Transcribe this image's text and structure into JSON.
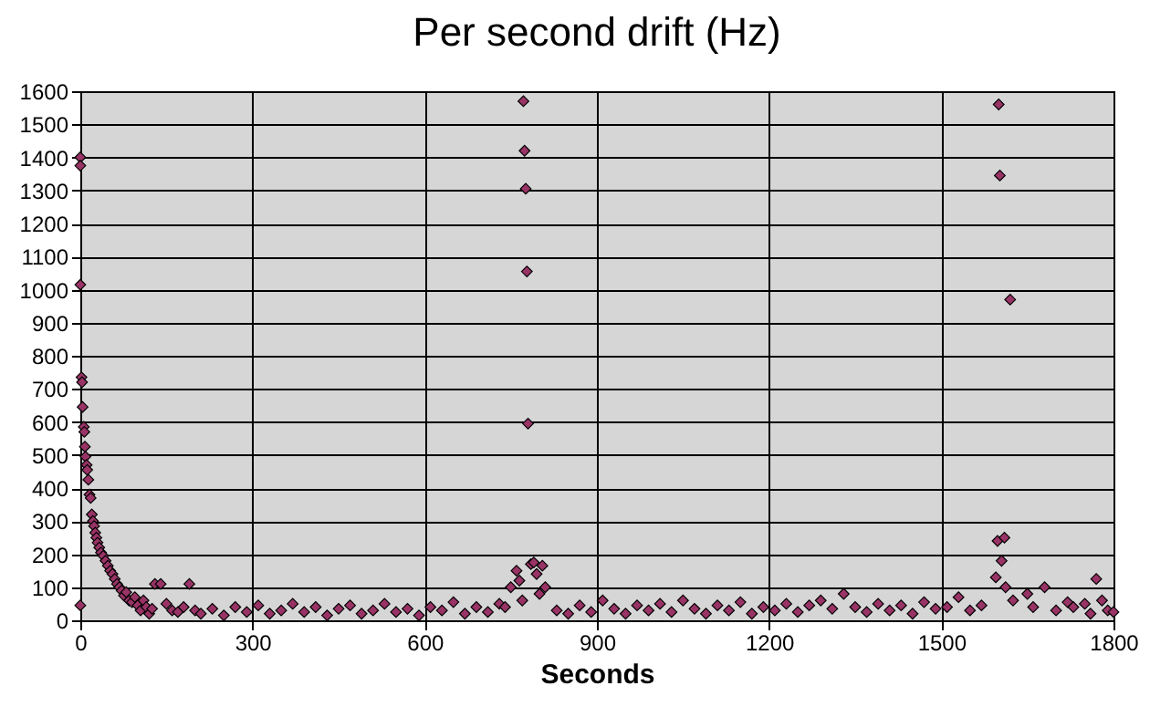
{
  "chart_data": {
    "type": "scatter",
    "title": "Per second drift (Hz)",
    "xlabel": "Seconds",
    "xlim": [
      0,
      1800
    ],
    "xticks": [
      0,
      300,
      600,
      900,
      1200,
      1500,
      1800
    ],
    "ylim": [
      0,
      1600
    ],
    "yticks": [
      0,
      100,
      200,
      300,
      400,
      500,
      600,
      700,
      800,
      900,
      1000,
      1100,
      1200,
      1300,
      1400,
      1500,
      1600
    ],
    "grid": true,
    "marker": "diamond",
    "series": [
      {
        "color": "#993366",
        "x": [
          0,
          0,
          0,
          0,
          2,
          3,
          4,
          6,
          7,
          8,
          9,
          11,
          12,
          14,
          16,
          18,
          20,
          22,
          24,
          26,
          28,
          30,
          33,
          36,
          40,
          44,
          48,
          52,
          56,
          60,
          64,
          68,
          72,
          76,
          80,
          85,
          90,
          95,
          100,
          105,
          110,
          115,
          120,
          125,
          130,
          140,
          150,
          160,
          170,
          180,
          190,
          200,
          210,
          230,
          250,
          270,
          290,
          310,
          330,
          350,
          370,
          390,
          410,
          430,
          450,
          470,
          490,
          510,
          530,
          550,
          570,
          590,
          610,
          630,
          650,
          670,
          690,
          710,
          730,
          740,
          750,
          760,
          765,
          770,
          772,
          774,
          776,
          778,
          780,
          785,
          790,
          795,
          800,
          805,
          810,
          830,
          850,
          870,
          890,
          910,
          930,
          950,
          970,
          990,
          1010,
          1030,
          1050,
          1070,
          1090,
          1110,
          1130,
          1150,
          1170,
          1190,
          1210,
          1230,
          1250,
          1270,
          1290,
          1310,
          1330,
          1350,
          1370,
          1390,
          1410,
          1430,
          1450,
          1470,
          1490,
          1510,
          1530,
          1550,
          1570,
          1595,
          1598,
          1600,
          1602,
          1605,
          1610,
          1612,
          1620,
          1625,
          1650,
          1660,
          1680,
          1700,
          1720,
          1730,
          1750,
          1760,
          1770,
          1780,
          1790,
          1800
        ],
        "values": [
          1400,
          1375,
          1015,
          45,
          735,
          720,
          645,
          585,
          570,
          525,
          495,
          470,
          455,
          425,
          380,
          370,
          320,
          300,
          285,
          265,
          250,
          235,
          220,
          205,
          195,
          180,
          165,
          150,
          140,
          125,
          110,
          100,
          90,
          75,
          85,
          60,
          55,
          70,
          45,
          30,
          60,
          40,
          20,
          35,
          110,
          110,
          50,
          30,
          25,
          40,
          110,
          30,
          20,
          35,
          15,
          40,
          25,
          45,
          20,
          30,
          50,
          25,
          40,
          15,
          35,
          45,
          20,
          30,
          50,
          25,
          35,
          15,
          40,
          30,
          55,
          20,
          40,
          25,
          50,
          40,
          100,
          150,
          120,
          60,
          1570,
          1420,
          1305,
          1055,
          595,
          170,
          175,
          140,
          80,
          165,
          100,
          30,
          20,
          45,
          25,
          60,
          35,
          20,
          45,
          30,
          50,
          25,
          60,
          35,
          20,
          45,
          30,
          55,
          20,
          40,
          30,
          50,
          25,
          45,
          60,
          35,
          80,
          40,
          25,
          50,
          30,
          45,
          20,
          55,
          35,
          40,
          70,
          30,
          45,
          130,
          240,
          1560,
          1345,
          180,
          250,
          100,
          970,
          60,
          80,
          40,
          100,
          30,
          55,
          40,
          50,
          20,
          125,
          60,
          30,
          25
        ]
      }
    ]
  }
}
